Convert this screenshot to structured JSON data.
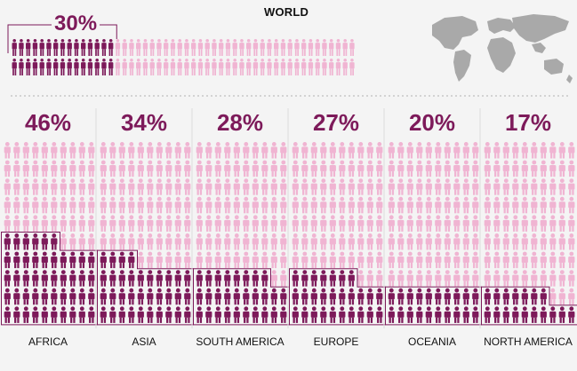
{
  "chart_data": {
    "type": "pictogram",
    "world": {
      "title": "WORLD",
      "value_label": "30%",
      "value": 30,
      "highlighted_icons": 30,
      "total_icons": 100
    },
    "regions": [
      {
        "name": "AFRICA",
        "value_label": "46%",
        "value": 46,
        "highlighted_icons": 46,
        "total_icons": 100
      },
      {
        "name": "ASIA",
        "value_label": "34%",
        "value": 34,
        "highlighted_icons": 34,
        "total_icons": 100
      },
      {
        "name": "SOUTH AMERICA",
        "value_label": "28%",
        "value": 28,
        "highlighted_icons": 28,
        "total_icons": 100
      },
      {
        "name": "EUROPE",
        "value_label": "27%",
        "value": 27,
        "highlighted_icons": 27,
        "total_icons": 100
      },
      {
        "name": "OCEANIA",
        "value_label": "20%",
        "value": 20,
        "highlighted_icons": 20,
        "total_icons": 100
      },
      {
        "name": "NORTH AMERICA",
        "value_label": "17%",
        "value": 17,
        "highlighted_icons": 17,
        "total_icons": 100
      }
    ],
    "colors": {
      "highlight": "#7d1a5a",
      "base": "#f0b4d2",
      "text_accent": "#7d1a5a",
      "divider": "#c8c8c8",
      "map": "#a9a9a9"
    }
  }
}
